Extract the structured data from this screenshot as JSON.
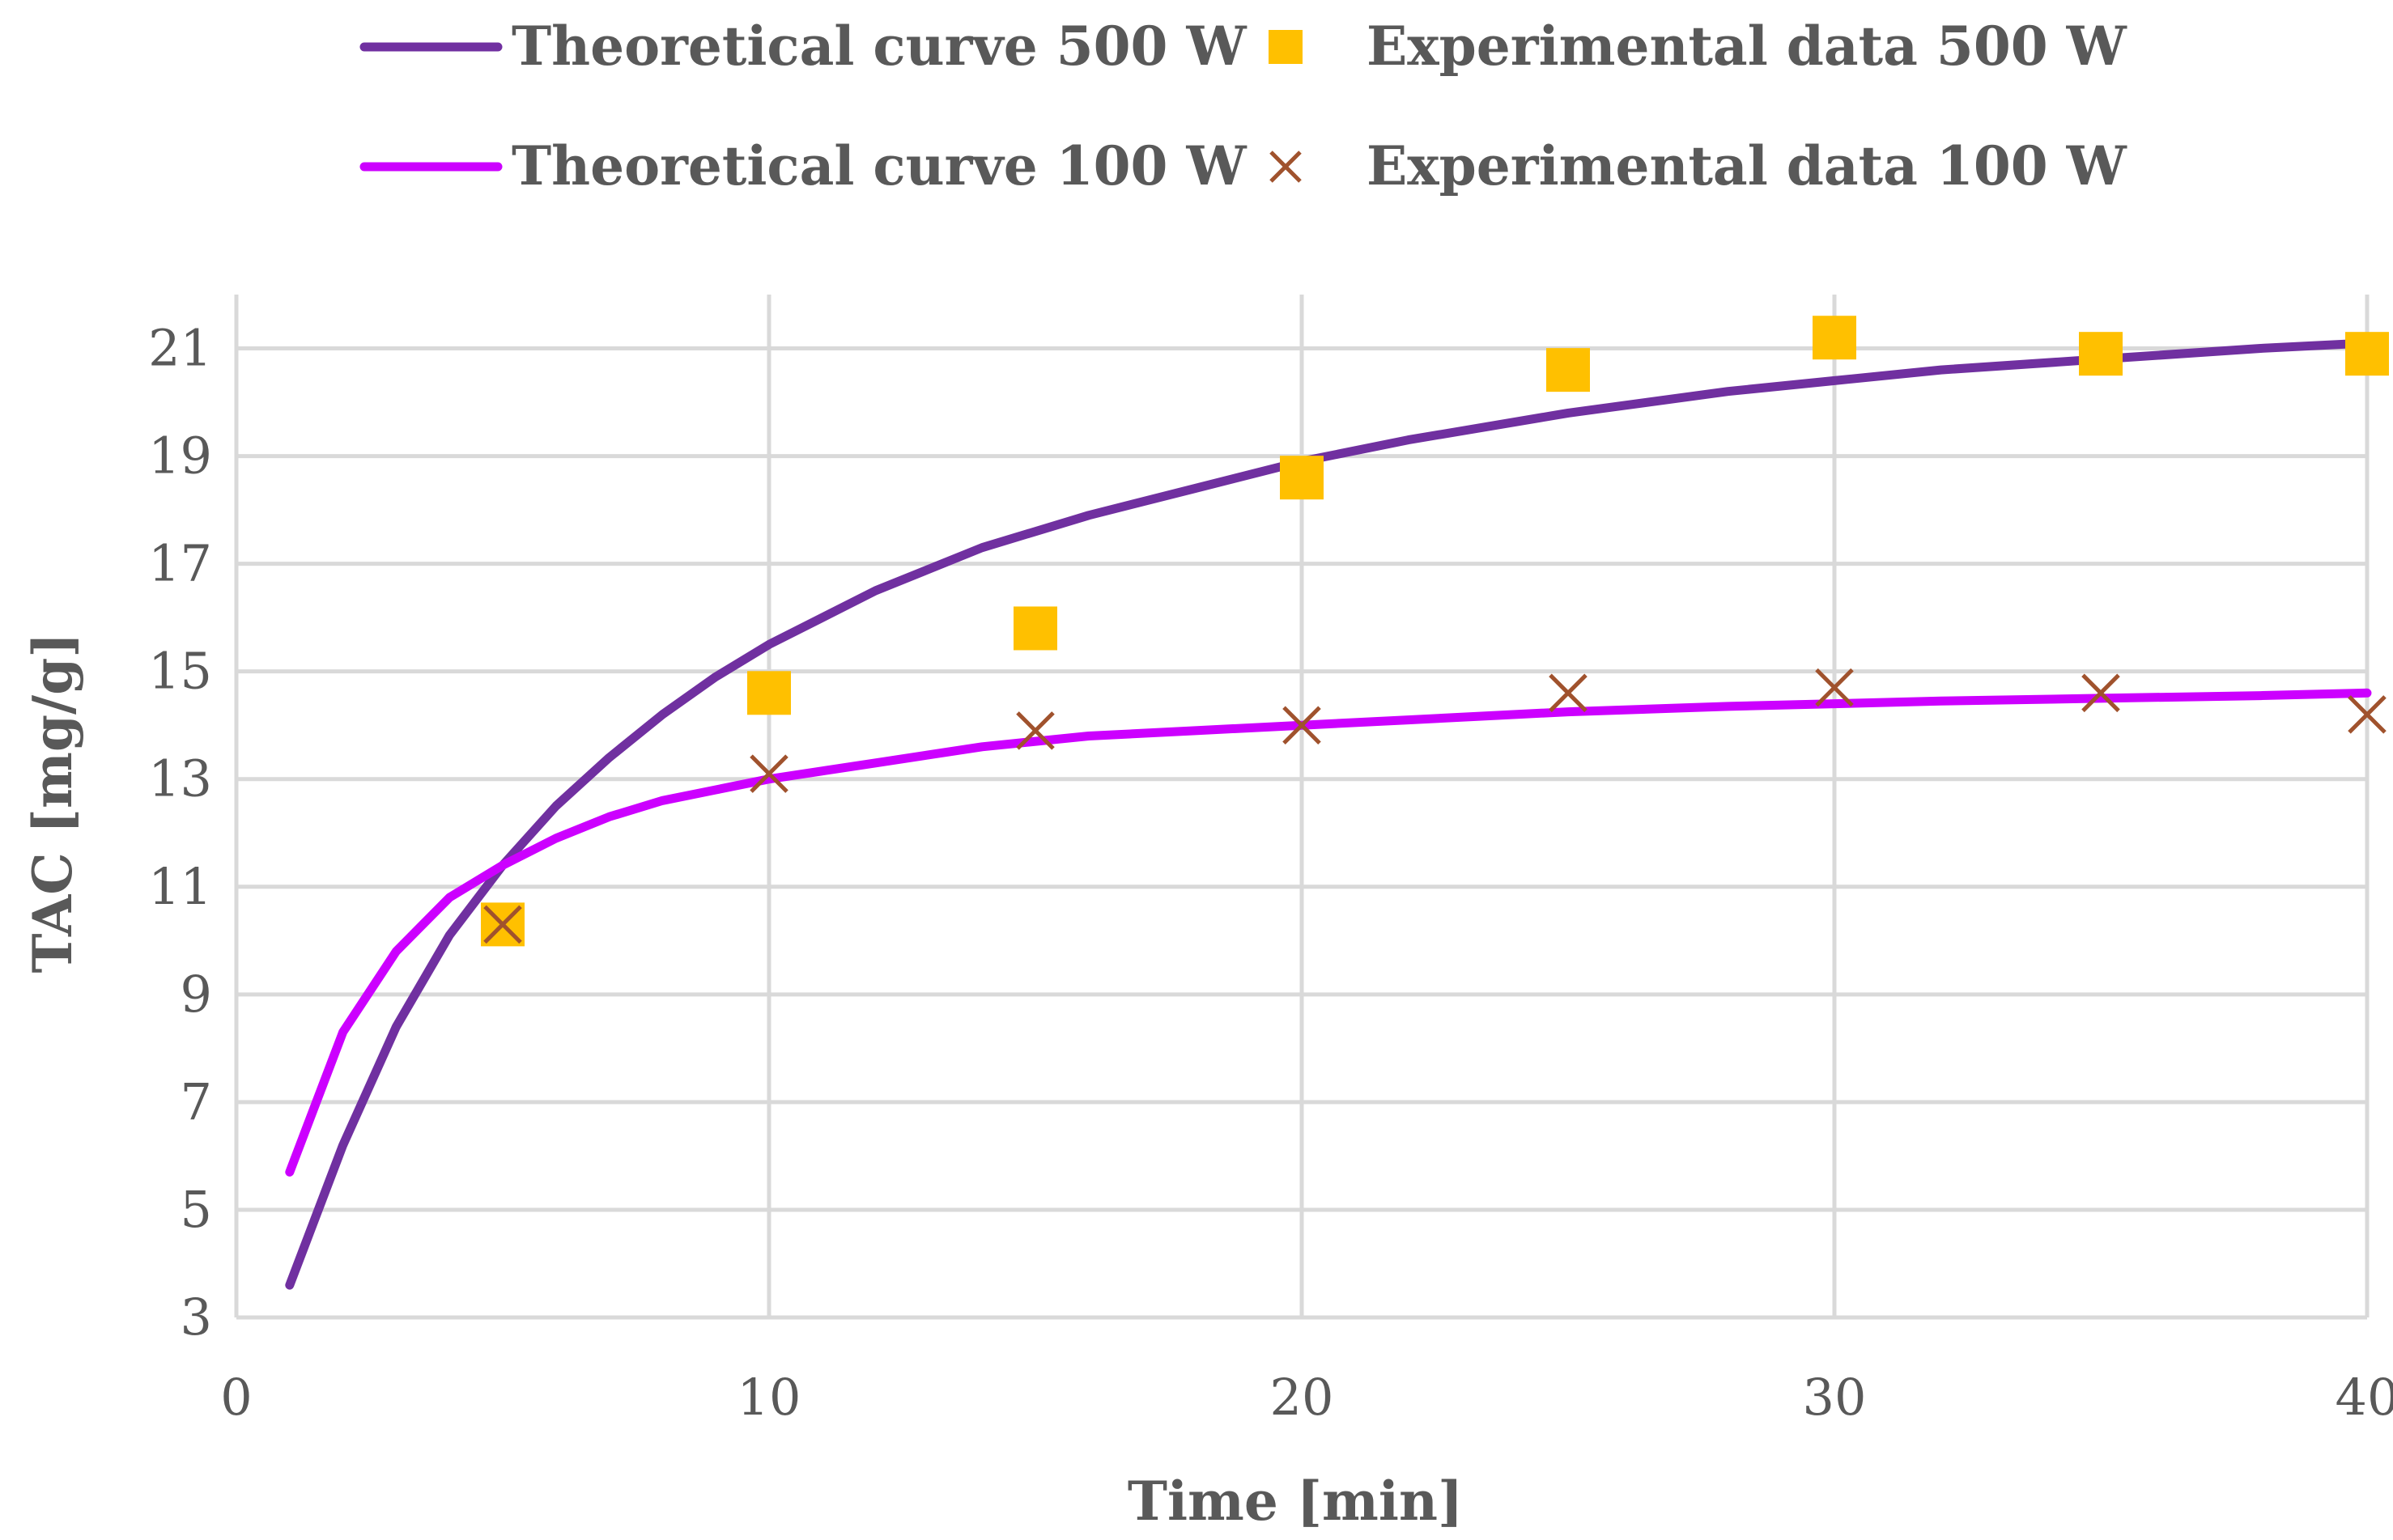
{
  "chart_data": {
    "type": "line",
    "title": "",
    "xlabel": "Time [min]",
    "ylabel": "TAC [mg/g]",
    "xlim": [
      0,
      40
    ],
    "ylim": [
      3,
      22
    ],
    "xticks": [
      0,
      10,
      20,
      30,
      40
    ],
    "yticks": [
      3,
      5,
      7,
      9,
      11,
      13,
      15,
      17,
      19,
      21
    ],
    "grid": true,
    "legend_position": "top",
    "series": [
      {
        "name": "Theoretical curve 500 W",
        "kind": "line",
        "color": "#7030a0",
        "x": [
          1,
          2,
          3,
          4,
          5,
          6,
          7,
          8,
          9,
          10,
          12,
          14,
          16,
          18,
          20,
          22,
          25,
          28,
          30,
          32,
          35,
          38,
          40
        ],
        "y": [
          3.6,
          6.2,
          8.4,
          10.1,
          11.4,
          12.5,
          13.4,
          14.2,
          14.9,
          15.5,
          16.5,
          17.3,
          17.9,
          18.4,
          18.9,
          19.3,
          19.8,
          20.2,
          20.4,
          20.6,
          20.8,
          21.0,
          21.1
        ]
      },
      {
        "name": "Theoretical curve 100 W",
        "kind": "line",
        "color": "#cc00ff",
        "x": [
          1,
          2,
          3,
          4,
          5,
          6,
          7,
          8,
          9,
          10,
          12,
          14,
          16,
          18,
          20,
          22,
          25,
          28,
          30,
          32,
          35,
          38,
          40
        ],
        "y": [
          5.7,
          8.3,
          9.8,
          10.8,
          11.4,
          11.9,
          12.3,
          12.6,
          12.8,
          13.0,
          13.3,
          13.6,
          13.8,
          13.9,
          14.0,
          14.1,
          14.25,
          14.35,
          14.4,
          14.45,
          14.5,
          14.55,
          14.6
        ]
      },
      {
        "name": "Experimental data 500 W",
        "kind": "marker-square",
        "color": "#ffc000",
        "x": [
          5,
          10,
          15,
          20,
          25,
          30,
          35,
          40
        ],
        "y": [
          10.3,
          14.6,
          15.8,
          18.6,
          20.6,
          21.2,
          20.9,
          20.9
        ]
      },
      {
        "name": "Experimental data 100 W",
        "kind": "marker-x",
        "color": "#a0522d",
        "x": [
          5,
          10,
          15,
          20,
          25,
          30,
          35,
          40
        ],
        "y": [
          10.3,
          13.1,
          13.9,
          14.0,
          14.6,
          14.7,
          14.6,
          14.2
        ]
      }
    ]
  }
}
